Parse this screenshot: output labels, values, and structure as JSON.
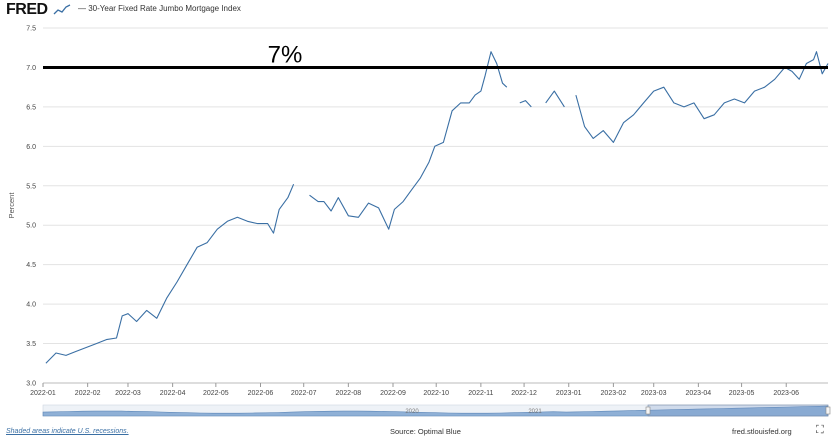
{
  "header": {
    "logo_text": "FRED",
    "legend_label": "— 30-Year Fixed Rate Jumbo Mortgage Index",
    "series_color": "#3a6fa4"
  },
  "footer": {
    "recession_note": "Shaded areas indicate U.S. recessions.",
    "source": "Source: Optimal Blue",
    "url": "fred.stlouisfed.org"
  },
  "navigator": {
    "labels": [
      "2020",
      "2021"
    ]
  },
  "annotation": {
    "label": "7%",
    "value": 7.0,
    "color": "#000000"
  },
  "chart_data": {
    "type": "line",
    "title": "",
    "xlabel": "",
    "ylabel": "Percent",
    "ylim": [
      3.0,
      7.5
    ],
    "yticks": [
      3.0,
      3.5,
      4.0,
      4.5,
      5.0,
      5.5,
      6.0,
      6.5,
      7.0,
      7.5
    ],
    "ytick_labels": [
      "3.0",
      "3.5",
      "4.0",
      "4.5",
      "5.0",
      "5.5",
      "6.0",
      "6.5",
      "7.0",
      "7.5"
    ],
    "xlim": [
      "2022-01-01",
      "2023-06-30"
    ],
    "xtick_labels": [
      "2022-01",
      "2022-02",
      "2022-03",
      "2022-04",
      "2022-05",
      "2022-06",
      "2022-07",
      "2022-08",
      "2022-09",
      "2022-10",
      "2022-11",
      "2022-12",
      "2023-01",
      "2023-02",
      "2023-03",
      "2023-04",
      "2023-05",
      "2023-06"
    ],
    "xtick_dates": [
      "2022-01-01",
      "2022-02-01",
      "2022-03-01",
      "2022-04-01",
      "2022-05-01",
      "2022-06-01",
      "2022-07-01",
      "2022-08-01",
      "2022-09-01",
      "2022-10-01",
      "2022-11-01",
      "2022-12-01",
      "2023-01-01",
      "2023-02-01",
      "2023-03-01",
      "2023-04-01",
      "2023-05-01",
      "2023-06-01"
    ],
    "grid": "horizontal",
    "legend": "top-left",
    "series": [
      {
        "name": "30-Year Fixed Rate Jumbo Mortgage Index",
        "color": "#3a6fa4",
        "points": [
          [
            "2022-01-03",
            3.25
          ],
          [
            "2022-01-10",
            3.38
          ],
          [
            "2022-01-17",
            3.35
          ],
          [
            "2022-01-24",
            3.4
          ],
          [
            "2022-01-31",
            3.45
          ],
          [
            "2022-02-07",
            3.5
          ],
          [
            "2022-02-14",
            3.55
          ],
          [
            "2022-02-21",
            3.57
          ],
          [
            "2022-02-25",
            3.85
          ],
          [
            "2022-03-01",
            3.88
          ],
          [
            "2022-03-07",
            3.78
          ],
          [
            "2022-03-14",
            3.92
          ],
          [
            "2022-03-21",
            3.82
          ],
          [
            "2022-03-28",
            4.08
          ],
          [
            "2022-04-04",
            4.28
          ],
          [
            "2022-04-11",
            4.5
          ],
          [
            "2022-04-18",
            4.72
          ],
          [
            "2022-04-25",
            4.78
          ],
          [
            "2022-05-02",
            4.95
          ],
          [
            "2022-05-09",
            5.05
          ],
          [
            "2022-05-16",
            5.1
          ],
          [
            "2022-05-23",
            5.05
          ],
          [
            "2022-05-30",
            5.02
          ],
          [
            "2022-06-06",
            5.02
          ],
          [
            "2022-06-10",
            4.9
          ],
          [
            "2022-06-14",
            5.2
          ],
          [
            "2022-06-20",
            5.35
          ],
          [
            "2022-06-24",
            5.52
          ],
          [
            "2022-07-01",
            null
          ],
          [
            "2022-07-05",
            5.38
          ],
          [
            "2022-07-11",
            5.3
          ],
          [
            "2022-07-15",
            5.3
          ],
          [
            "2022-07-20",
            5.18
          ],
          [
            "2022-07-25",
            5.35
          ],
          [
            "2022-08-01",
            5.12
          ],
          [
            "2022-08-08",
            5.1
          ],
          [
            "2022-08-15",
            5.28
          ],
          [
            "2022-08-22",
            5.22
          ],
          [
            "2022-08-29",
            4.95
          ],
          [
            "2022-09-02",
            5.2
          ],
          [
            "2022-09-08",
            5.3
          ],
          [
            "2022-09-14",
            5.45
          ],
          [
            "2022-09-20",
            5.6
          ],
          [
            "2022-09-26",
            5.8
          ],
          [
            "2022-09-30",
            6.0
          ],
          [
            "2022-10-06",
            6.05
          ],
          [
            "2022-10-12",
            6.45
          ],
          [
            "2022-10-18",
            6.55
          ],
          [
            "2022-10-24",
            6.55
          ],
          [
            "2022-10-28",
            6.65
          ],
          [
            "2022-11-01",
            6.7
          ],
          [
            "2022-11-04",
            6.9
          ],
          [
            "2022-11-08",
            7.2
          ],
          [
            "2022-11-12",
            7.05
          ],
          [
            "2022-11-16",
            6.8
          ],
          [
            "2022-11-19",
            6.75
          ],
          [
            "2022-11-20",
            null
          ],
          [
            "2022-11-28",
            6.55
          ],
          [
            "2022-12-02",
            6.58
          ],
          [
            "2022-12-06",
            6.5
          ],
          [
            "2022-12-10",
            null
          ],
          [
            "2022-12-16",
            6.55
          ],
          [
            "2022-12-22",
            6.7
          ],
          [
            "2022-12-29",
            6.5
          ],
          [
            "2023-01-03",
            null
          ],
          [
            "2023-01-06",
            6.65
          ],
          [
            "2023-01-12",
            6.25
          ],
          [
            "2023-01-18",
            6.1
          ],
          [
            "2023-01-25",
            6.2
          ],
          [
            "2023-02-01",
            6.05
          ],
          [
            "2023-02-08",
            6.3
          ],
          [
            "2023-02-15",
            6.4
          ],
          [
            "2023-02-22",
            6.55
          ],
          [
            "2023-03-01",
            6.7
          ],
          [
            "2023-03-08",
            6.75
          ],
          [
            "2023-03-15",
            6.55
          ],
          [
            "2023-03-22",
            6.5
          ],
          [
            "2023-03-29",
            6.55
          ],
          [
            "2023-04-05",
            6.35
          ],
          [
            "2023-04-12",
            6.4
          ],
          [
            "2023-04-19",
            6.55
          ],
          [
            "2023-04-26",
            6.6
          ],
          [
            "2023-05-03",
            6.55
          ],
          [
            "2023-05-10",
            6.7
          ],
          [
            "2023-05-17",
            6.75
          ],
          [
            "2023-05-24",
            6.85
          ],
          [
            "2023-05-31",
            7.0
          ],
          [
            "2023-06-05",
            6.95
          ],
          [
            "2023-06-10",
            6.85
          ],
          [
            "2023-06-15",
            7.05
          ],
          [
            "2023-06-20",
            7.1
          ],
          [
            "2023-06-22",
            7.2
          ],
          [
            "2023-06-26",
            6.92
          ],
          [
            "2023-06-30",
            7.05
          ]
        ]
      }
    ]
  }
}
